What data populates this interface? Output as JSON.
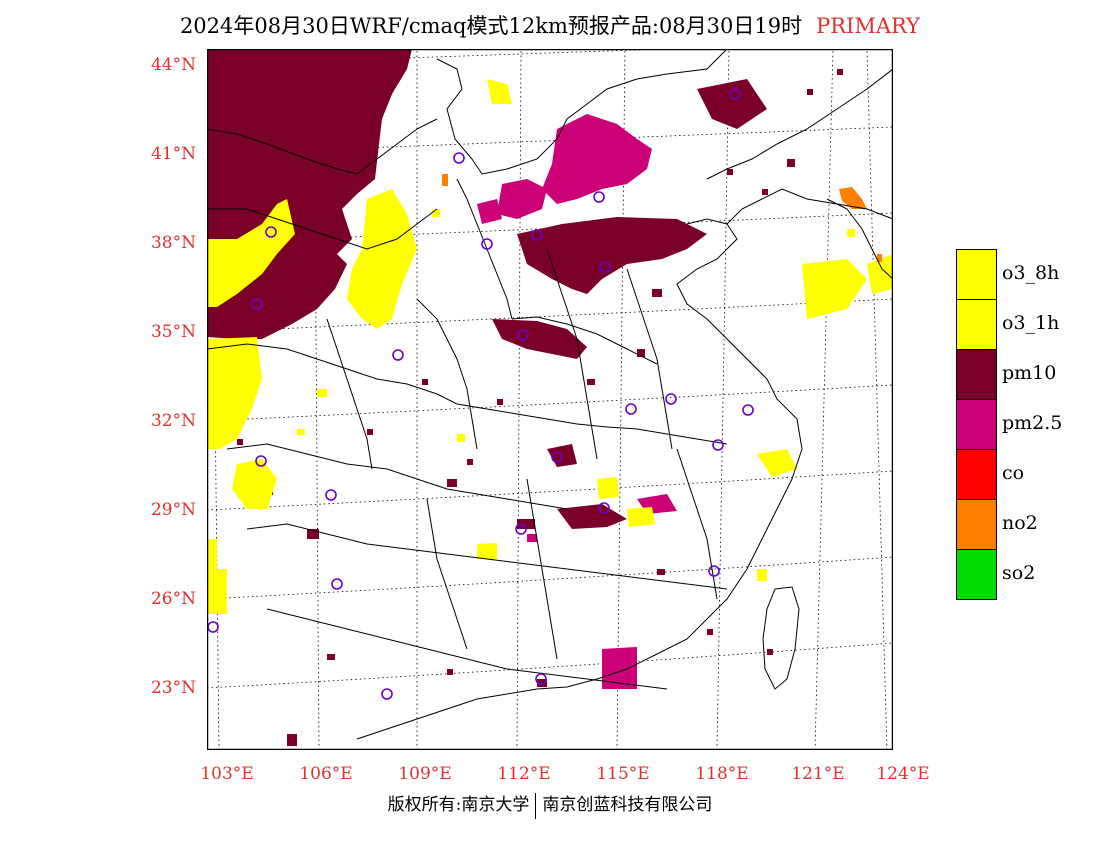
{
  "title": {
    "text": "2024年08月30日WRF/cmaq模式12km预报产品:08月30日19时",
    "tag": "PRIMARY"
  },
  "colors": {
    "o3_8h": "#ffff00",
    "o3_1h": "#ffff00",
    "pm10": "#7b0028",
    "pm2_5": "#cc0077",
    "co": "#ff0000",
    "no2": "#ff7f00",
    "so2": "#00dd00",
    "axis_label": "#e03030",
    "station": "#6a00cc"
  },
  "y_axis": [
    "44°N",
    "41°N",
    "38°N",
    "35°N",
    "32°N",
    "29°N",
    "26°N",
    "23°N"
  ],
  "x_axis": [
    "103°E",
    "106°E",
    "109°E",
    "112°E",
    "115°E",
    "118°E",
    "121°E",
    "124°E"
  ],
  "legend": [
    {
      "label": "o3_8h",
      "color": "#ffff00"
    },
    {
      "label": "o3_1h",
      "color": "#ffff00"
    },
    {
      "label": "pm10",
      "color": "#7b0028"
    },
    {
      "label": "pm2.5",
      "color": "#cc0077"
    },
    {
      "label": "co",
      "color": "#ff0000"
    },
    {
      "label": "no2",
      "color": "#ff7f00"
    },
    {
      "label": "so2",
      "color": "#00dd00"
    }
  ],
  "footer": {
    "left": "版权所有:南京大学",
    "right": "南京创蓝科技有限公司"
  }
}
